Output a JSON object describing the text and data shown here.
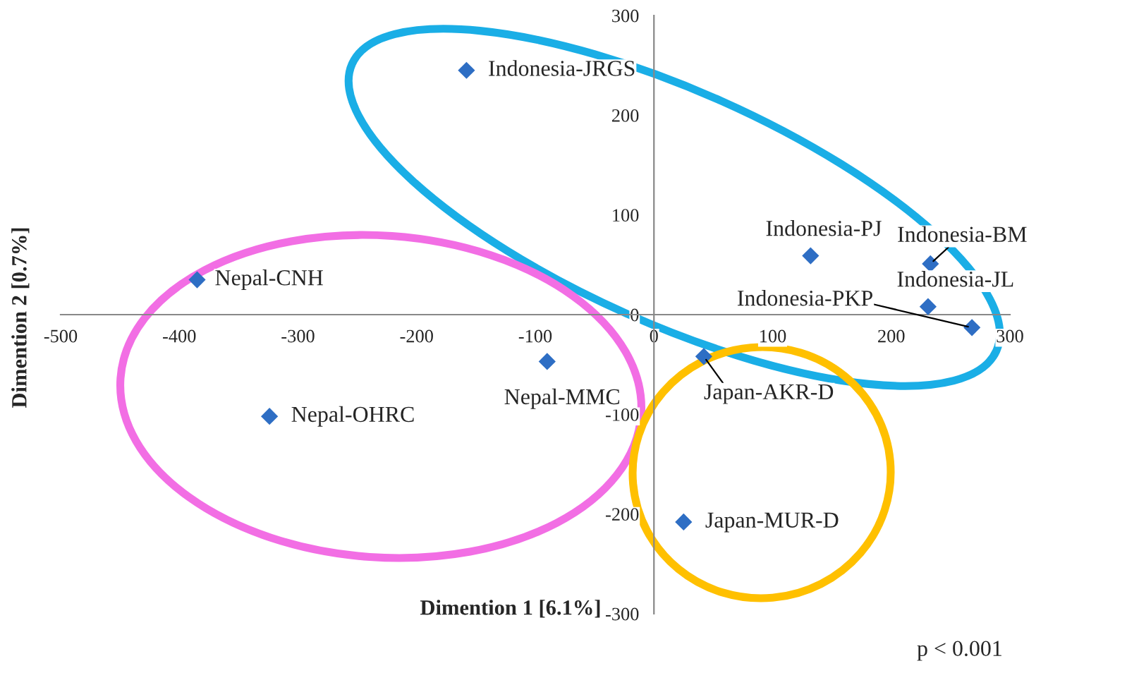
{
  "chart_data": {
    "type": "scatter",
    "xlabel": "Dimention 1 [6.1%]",
    "ylabel": "Dimention 2 [0.7%]",
    "x": [
      -158,
      132,
      233,
      231,
      268,
      -385,
      -90,
      -324,
      42,
      25
    ],
    "series": [
      {
        "color": "#2e6ec4",
        "values": [
          245,
          59,
          51,
          8,
          -13,
          35,
          -47,
          -102,
          -42,
          -208
        ]
      }
    ],
    "marker": "diamond",
    "xlim": [
      -500,
      300
    ],
    "xticks": [
      -500,
      -400,
      -300,
      -200,
      -100,
      0,
      100,
      200,
      300
    ],
    "ylim": [
      -300,
      300
    ],
    "yticks": [
      -300,
      -200,
      -100,
      0,
      100,
      200,
      300
    ],
    "grid": false,
    "legend": false,
    "annotations": [
      {
        "text": "Indonesia-JRGS",
        "x": -158,
        "y": 245
      },
      {
        "text": "Indonesia-PJ",
        "x": 132,
        "y": 59
      },
      {
        "text": "Indonesia-BM",
        "x": 233,
        "y": 51
      },
      {
        "text": "Indonesia-JL",
        "x": 231,
        "y": 8
      },
      {
        "text": "Indonesia-PKP",
        "x": 268,
        "y": -13
      },
      {
        "text": "Nepal-CNH",
        "x": -385,
        "y": 35
      },
      {
        "text": "Nepal-MMC",
        "x": -90,
        "y": -47
      },
      {
        "text": "Nepal-OHRC",
        "x": -324,
        "y": -102
      },
      {
        "text": "Japan-AKR-D",
        "x": 42,
        "y": -42
      },
      {
        "text": "Japan-MUR-D",
        "x": 25,
        "y": -208
      },
      "p < 0.001"
    ]
  }
}
